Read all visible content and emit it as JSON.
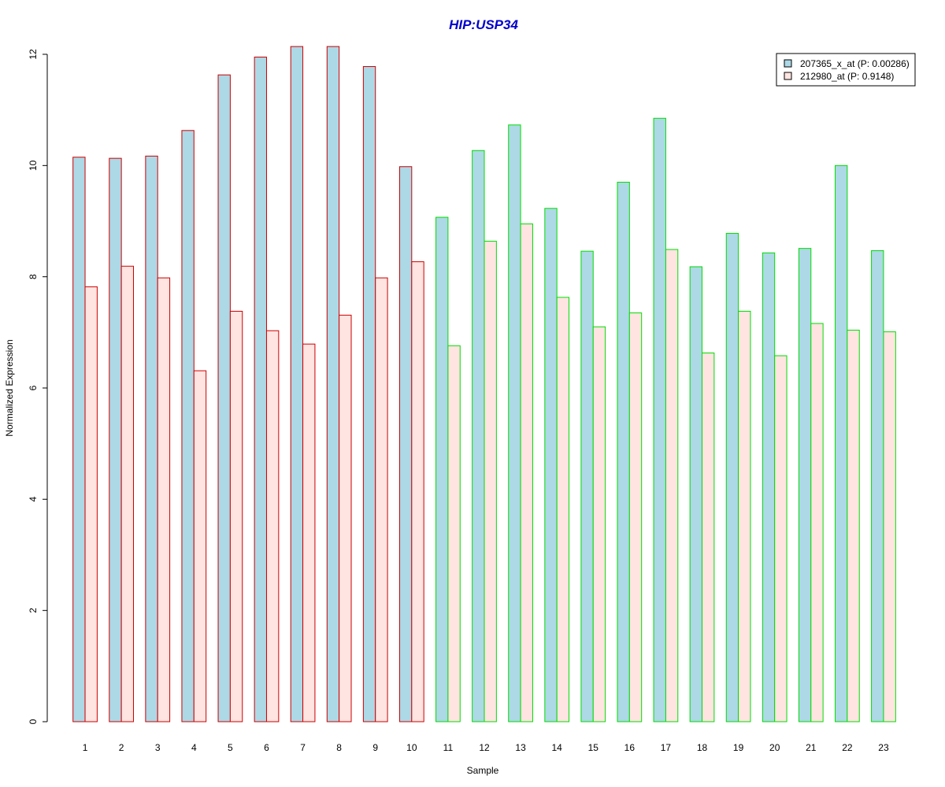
{
  "chart_data": {
    "type": "bar",
    "title": "HIP:USP34",
    "xlabel": "Sample",
    "ylabel": "Normalized Expression",
    "ylim": [
      0,
      12
    ],
    "yticks": [
      0,
      2,
      4,
      6,
      8,
      10,
      12
    ],
    "categories": [
      "1",
      "2",
      "3",
      "4",
      "5",
      "6",
      "7",
      "8",
      "9",
      "10",
      "11",
      "12",
      "13",
      "14",
      "15",
      "16",
      "17",
      "18",
      "19",
      "20",
      "21",
      "22",
      "23"
    ],
    "series": [
      {
        "name": "207365_x_at (P: 0.00286)",
        "fill": "#add8e6",
        "values": [
          10.15,
          10.13,
          10.17,
          10.63,
          11.63,
          11.95,
          12.14,
          12.14,
          11.78,
          9.98,
          9.07,
          10.27,
          10.73,
          9.23,
          8.46,
          9.7,
          10.85,
          8.18,
          8.78,
          8.43,
          8.51,
          10.0,
          8.47
        ]
      },
      {
        "name": "212980_at (P: 0.9148)",
        "fill": "#ffe4e1",
        "values": [
          7.82,
          8.19,
          7.98,
          6.31,
          7.38,
          7.03,
          6.79,
          7.31,
          7.98,
          8.27,
          6.76,
          8.64,
          8.95,
          7.63,
          7.1,
          7.35,
          8.49,
          6.63,
          7.38,
          6.58,
          7.16,
          7.04,
          7.01
        ]
      }
    ],
    "group_border_colors": [
      "#cc0000",
      "#cc0000",
      "#cc0000",
      "#cc0000",
      "#cc0000",
      "#cc0000",
      "#cc0000",
      "#cc0000",
      "#cc0000",
      "#cc0000",
      "#00dd00",
      "#00dd00",
      "#00dd00",
      "#00dd00",
      "#00dd00",
      "#00dd00",
      "#00dd00",
      "#00dd00",
      "#00dd00",
      "#00dd00",
      "#00dd00",
      "#00dd00",
      "#00dd00"
    ],
    "title_color": "#0000cc",
    "legend_position": "top-right",
    "grid": false
  }
}
